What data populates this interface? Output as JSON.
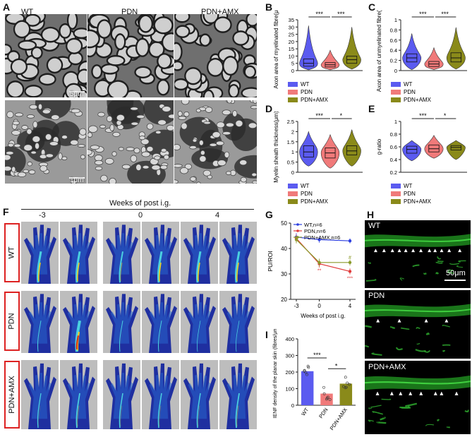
{
  "panels": {
    "A": {
      "letter": "A",
      "groups": [
        "WT",
        "PDN",
        "PDN+AMX"
      ],
      "scale_top": "5μm",
      "scale_bottom": "1μm"
    },
    "B": {
      "letter": "B",
      "sig": [
        "***",
        "***"
      ]
    },
    "C": {
      "letter": "C",
      "sig": [
        "***",
        "***"
      ]
    },
    "D": {
      "letter": "D",
      "sig": [
        "***",
        "*"
      ]
    },
    "E": {
      "letter": "E",
      "sig": [
        "***",
        "*"
      ]
    },
    "F": {
      "letter": "F",
      "title": "Weeks of post i.g.",
      "timepoints": [
        "-3",
        "0",
        "4"
      ],
      "rows": [
        "WT",
        "PDN",
        "PDN+AMX"
      ]
    },
    "G": {
      "letter": "G"
    },
    "H": {
      "letter": "H",
      "labels": [
        "WT",
        "PDN",
        "PDN+AMX"
      ],
      "scale": "50μm"
    },
    "I": {
      "letter": "I",
      "sig": [
        "***",
        "*"
      ]
    }
  },
  "legend": {
    "wt": "WT",
    "pdn": "PDN",
    "amx": "PDN+AMX"
  },
  "colors": {
    "wt": "#5b5bf0",
    "pdn": "#f07a7a",
    "amx": "#8a8a1a",
    "g_wt": "#2c3ee0",
    "g_pdn": "#e03a3a",
    "g_amx": "#8a9a2a"
  },
  "chart_data": [
    {
      "type": "violin",
      "panel": "B",
      "ylabel": "Axon area of myelinated fibre(μm²)",
      "ylim": [
        0,
        35
      ],
      "yticks": [
        0,
        5,
        10,
        15,
        20,
        25,
        30,
        35
      ],
      "series": [
        {
          "name": "WT",
          "min": 0.5,
          "q1": 3,
          "median": 5,
          "q3": 8,
          "max": 31
        },
        {
          "name": "PDN",
          "min": 0.5,
          "q1": 2.5,
          "median": 4,
          "q3": 5.5,
          "max": 14
        },
        {
          "name": "PDN+AMX",
          "min": 1,
          "q1": 5,
          "median": 7.5,
          "q3": 10,
          "max": 30
        }
      ]
    },
    {
      "type": "violin",
      "panel": "C",
      "ylabel": "Axon area of unmyelinated fibre(μm²)",
      "ylim": [
        0,
        1.0
      ],
      "yticks": [
        0.0,
        0.2,
        0.4,
        0.6,
        0.8,
        1.0
      ],
      "series": [
        {
          "name": "WT",
          "min": 0.02,
          "q1": 0.17,
          "median": 0.25,
          "q3": 0.33,
          "max": 0.73
        },
        {
          "name": "PDN",
          "min": 0.02,
          "q1": 0.08,
          "median": 0.13,
          "q3": 0.18,
          "max": 0.45
        },
        {
          "name": "PDN+AMX",
          "min": 0.03,
          "q1": 0.17,
          "median": 0.25,
          "q3": 0.35,
          "max": 0.85
        }
      ]
    },
    {
      "type": "violin",
      "panel": "D",
      "ylabel": "Myelin sheath thickness(μm)",
      "ylim": [
        0,
        2.5
      ],
      "yticks": [
        0.0,
        0.5,
        1.0,
        1.5,
        2.0,
        2.5
      ],
      "series": [
        {
          "name": "WT",
          "min": 0.3,
          "q1": 0.75,
          "median": 1.0,
          "q3": 1.3,
          "max": 2.0
        },
        {
          "name": "PDN",
          "min": 0.2,
          "q1": 0.7,
          "median": 0.95,
          "q3": 1.2,
          "max": 1.85
        },
        {
          "name": "PDN+AMX",
          "min": 0.3,
          "q1": 0.85,
          "median": 1.05,
          "q3": 1.3,
          "max": 2.1
        }
      ]
    },
    {
      "type": "violin",
      "panel": "E",
      "ylabel": "g-ratio",
      "ylim": [
        0.2,
        1.0
      ],
      "yticks": [
        0.2,
        0.4,
        0.6,
        0.8,
        1.0
      ],
      "series": [
        {
          "name": "WT",
          "min": 0.38,
          "q1": 0.5,
          "median": 0.56,
          "q3": 0.61,
          "max": 0.7
        },
        {
          "name": "PDN",
          "min": 0.42,
          "q1": 0.52,
          "median": 0.57,
          "q3": 0.63,
          "max": 0.78
        },
        {
          "name": "PDN+AMX",
          "min": 0.4,
          "q1": 0.55,
          "median": 0.59,
          "q3": 0.62,
          "max": 0.7
        }
      ]
    },
    {
      "type": "line",
      "panel": "G",
      "ylabel": "PU/ROI",
      "xlabel": "Weeks of post i.g.",
      "x": [
        -3,
        0,
        4
      ],
      "ylim": [
        20,
        50
      ],
      "yticks": [
        20,
        30,
        40,
        50
      ],
      "series": [
        {
          "name": "WT,n=6",
          "values": [
            44.5,
            43.5,
            43
          ],
          "errors": [
            1.5,
            1.2,
            1.0
          ],
          "annotations": [
            "",
            "",
            ""
          ]
        },
        {
          "name": "PDN,n=6",
          "values": [
            44,
            34,
            31
          ],
          "errors": [
            1.5,
            1.5,
            1.2
          ],
          "annotations": [
            "",
            "**",
            "***"
          ]
        },
        {
          "name": "PDN+AMX,n=6",
          "values": [
            43.5,
            34.5,
            34.5
          ],
          "errors": [
            1.5,
            1.5,
            1.2
          ],
          "annotations": [
            "",
            "",
            "#"
          ]
        }
      ]
    },
    {
      "type": "bar",
      "panel": "I",
      "ylabel": "IENF density of the planar skin (fibres/μm)",
      "categories": [
        "WT",
        "PDN",
        "PDN+AMX"
      ],
      "values": [
        205,
        70,
        130
      ],
      "ylim": [
        0,
        400
      ],
      "yticks": [
        0,
        100,
        200,
        300,
        400
      ]
    }
  ]
}
